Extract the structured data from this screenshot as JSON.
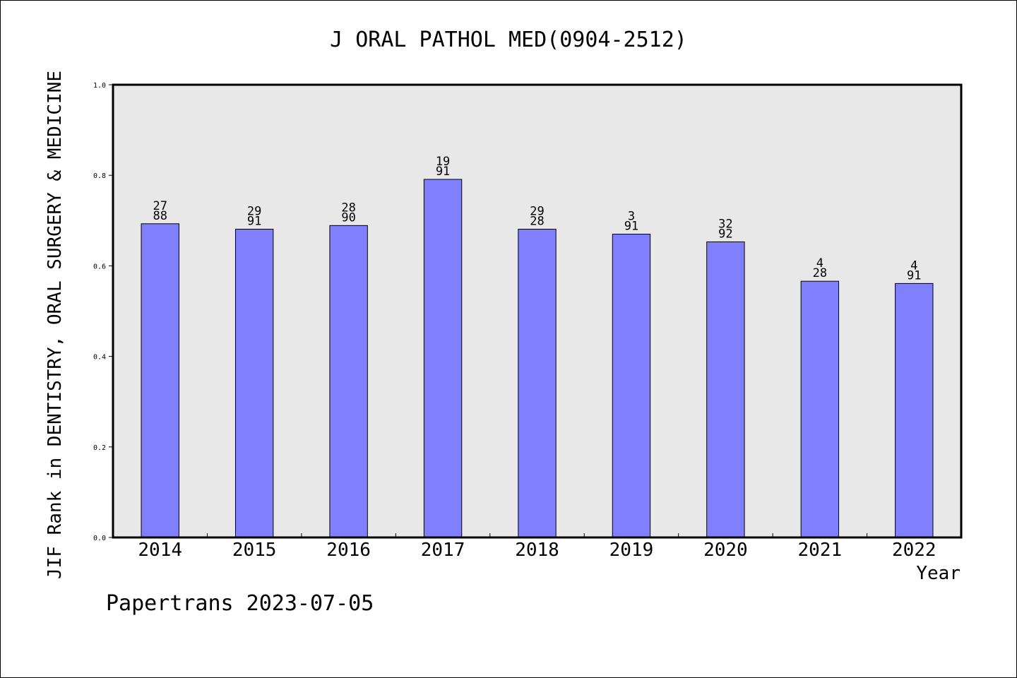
{
  "chart_data": {
    "type": "bar",
    "title": "J ORAL PATHOL MED(0904-2512)",
    "xlabel": "Year",
    "ylabel": "JIF Rank in DENTISTRY, ORAL SURGERY & MEDICINE",
    "ylim": [
      0,
      1.0
    ],
    "yticks": [
      "0.0",
      "0.2",
      "0.4",
      "0.6",
      "0.8",
      "1.0"
    ],
    "categories": [
      "2014",
      "2015",
      "2016",
      "2017",
      "2018",
      "2019",
      "2020",
      "2021",
      "2022"
    ],
    "values": [
      0.693,
      0.681,
      0.689,
      0.791,
      0.681,
      0.67,
      0.653,
      0.566,
      0.561
    ],
    "labels_top": [
      "27",
      "29",
      "28",
      "19",
      "29",
      "3",
      "32",
      "4",
      "4"
    ],
    "labels_bottom": [
      "88",
      "91",
      "90",
      "91",
      "28",
      "91",
      "92",
      "28",
      "91"
    ],
    "bar_color": "#8080ff",
    "plot_background": "#e8e8e8",
    "grid": false
  },
  "footer": "Papertrans 2023-07-05"
}
